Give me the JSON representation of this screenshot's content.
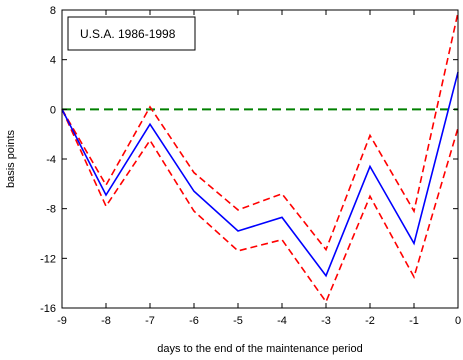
{
  "chart_data": {
    "type": "line",
    "title": "",
    "xlabel": "days to the end of the maintenance period",
    "ylabel": "basis points",
    "xlim": [
      -9,
      0
    ],
    "ylim": [
      -16,
      8
    ],
    "x_ticks": [
      -9,
      -8,
      -7,
      -6,
      -5,
      -4,
      -3,
      -2,
      -1,
      0
    ],
    "y_ticks": [
      -16,
      -12,
      -8,
      -4,
      0,
      4,
      8
    ],
    "annotation": "U.S.A. 1986-1998",
    "grid": false,
    "x": [
      -9,
      -8,
      -7,
      -6,
      -5,
      -4,
      -3,
      -2,
      -1,
      0
    ],
    "series": [
      {
        "name": "",
        "style": "solid",
        "color": "#0000ff",
        "values": [
          0,
          -6.9,
          -1.2,
          -6.6,
          -9.8,
          -8.7,
          -13.4,
          -4.6,
          -10.8,
          3.0
        ]
      },
      {
        "name": "",
        "style": "dashed",
        "color": "#ff0000",
        "values": [
          0,
          -6.1,
          0.2,
          -5.1,
          -8.1,
          -6.8,
          -11.3,
          -2.1,
          -8.2,
          7.8
        ]
      },
      {
        "name": "",
        "style": "dashed",
        "color": "#ff0000",
        "values": [
          0,
          -7.8,
          -2.5,
          -8.2,
          -11.4,
          -10.5,
          -15.5,
          -7.0,
          -13.5,
          -1.5
        ]
      },
      {
        "name": "",
        "style": "dashed",
        "color": "#008000",
        "values": [
          0,
          0,
          0,
          0,
          0,
          0,
          0,
          0,
          0,
          0
        ]
      }
    ]
  }
}
